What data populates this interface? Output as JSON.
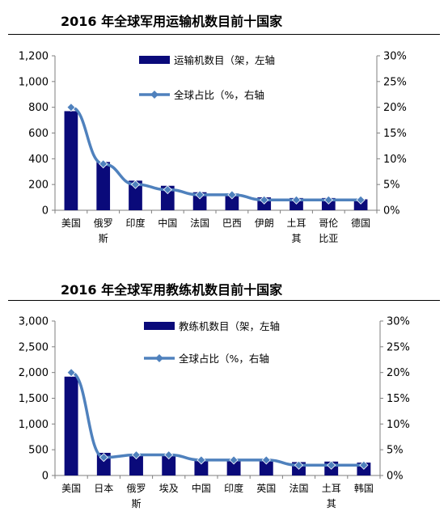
{
  "chart_data": [
    {
      "type": "bar",
      "title": "2016 年全球军用运输机数目前十国家",
      "categories": [
        "美国",
        "俄罗斯",
        "印度",
        "中国",
        "法国",
        "巴西",
        "伊朗",
        "土耳其",
        "哥伦比亚",
        "德国"
      ],
      "category_lines": [
        [
          "美国"
        ],
        [
          "俄罗",
          "斯"
        ],
        [
          "印度"
        ],
        [
          "中国"
        ],
        [
          "法国"
        ],
        [
          "巴西"
        ],
        [
          "伊朗"
        ],
        [
          "土耳",
          "其"
        ],
        [
          "哥伦",
          "比亚"
        ],
        [
          "德国"
        ]
      ],
      "series": [
        {
          "name": "运输机数目（架，左轴",
          "type": "bar",
          "axis": "left",
          "values": [
            770,
            375,
            230,
            190,
            140,
            130,
            100,
            95,
            95,
            85
          ]
        },
        {
          "name": "全球占比（%，右轴",
          "type": "line",
          "axis": "right",
          "values": [
            20.0,
            9.0,
            5.0,
            4.0,
            3.0,
            3.0,
            2.0,
            2.0,
            2.0,
            2.0
          ]
        }
      ],
      "y_left": {
        "min": 0,
        "max": 1200,
        "ticks": [
          "0",
          "200",
          "400",
          "600",
          "800",
          "1,000",
          "1,200"
        ]
      },
      "y_right": {
        "min": 0,
        "max": 30,
        "ticks": [
          "0%",
          "5%",
          "10%",
          "15%",
          "20%",
          "25%",
          "30%"
        ]
      },
      "legend_placement": "top-center",
      "grid": false
    },
    {
      "type": "bar",
      "title": "2016 年全球军用教练机数目前十国家",
      "categories": [
        "美国",
        "日本",
        "俄罗斯",
        "埃及",
        "中国",
        "印度",
        "英国",
        "法国",
        "土耳其",
        "韩国"
      ],
      "category_lines": [
        [
          "美国"
        ],
        [
          "日本"
        ],
        [
          "俄罗",
          "斯"
        ],
        [
          "埃及"
        ],
        [
          "中国"
        ],
        [
          "印度"
        ],
        [
          "英国"
        ],
        [
          "法国"
        ],
        [
          "土耳",
          "其"
        ],
        [
          "韩国"
        ]
      ],
      "series": [
        {
          "name": "教练机数目（架，左轴",
          "type": "bar",
          "axis": "left",
          "values": [
            1920,
            440,
            420,
            400,
            300,
            300,
            290,
            260,
            270,
            250
          ]
        },
        {
          "name": "全球占比（%，右轴",
          "type": "line",
          "axis": "right",
          "values": [
            20.0,
            3.5,
            4.0,
            4.0,
            3.0,
            3.0,
            3.0,
            2.0,
            2.0,
            2.0
          ]
        }
      ],
      "y_left": {
        "min": 0,
        "max": 3000,
        "ticks": [
          "0",
          "500",
          "1,000",
          "1,500",
          "2,000",
          "2,500",
          "3,000"
        ]
      },
      "y_right": {
        "min": 0,
        "max": 30,
        "ticks": [
          "0%",
          "5%",
          "10%",
          "15%",
          "20%",
          "25%",
          "30%"
        ]
      },
      "legend_placement": "top-center",
      "grid": false
    }
  ],
  "colors": {
    "bar": "#0a0a7a",
    "line": "#4f81bd",
    "marker": "#4f81bd",
    "axis": "#7f7f7f"
  }
}
